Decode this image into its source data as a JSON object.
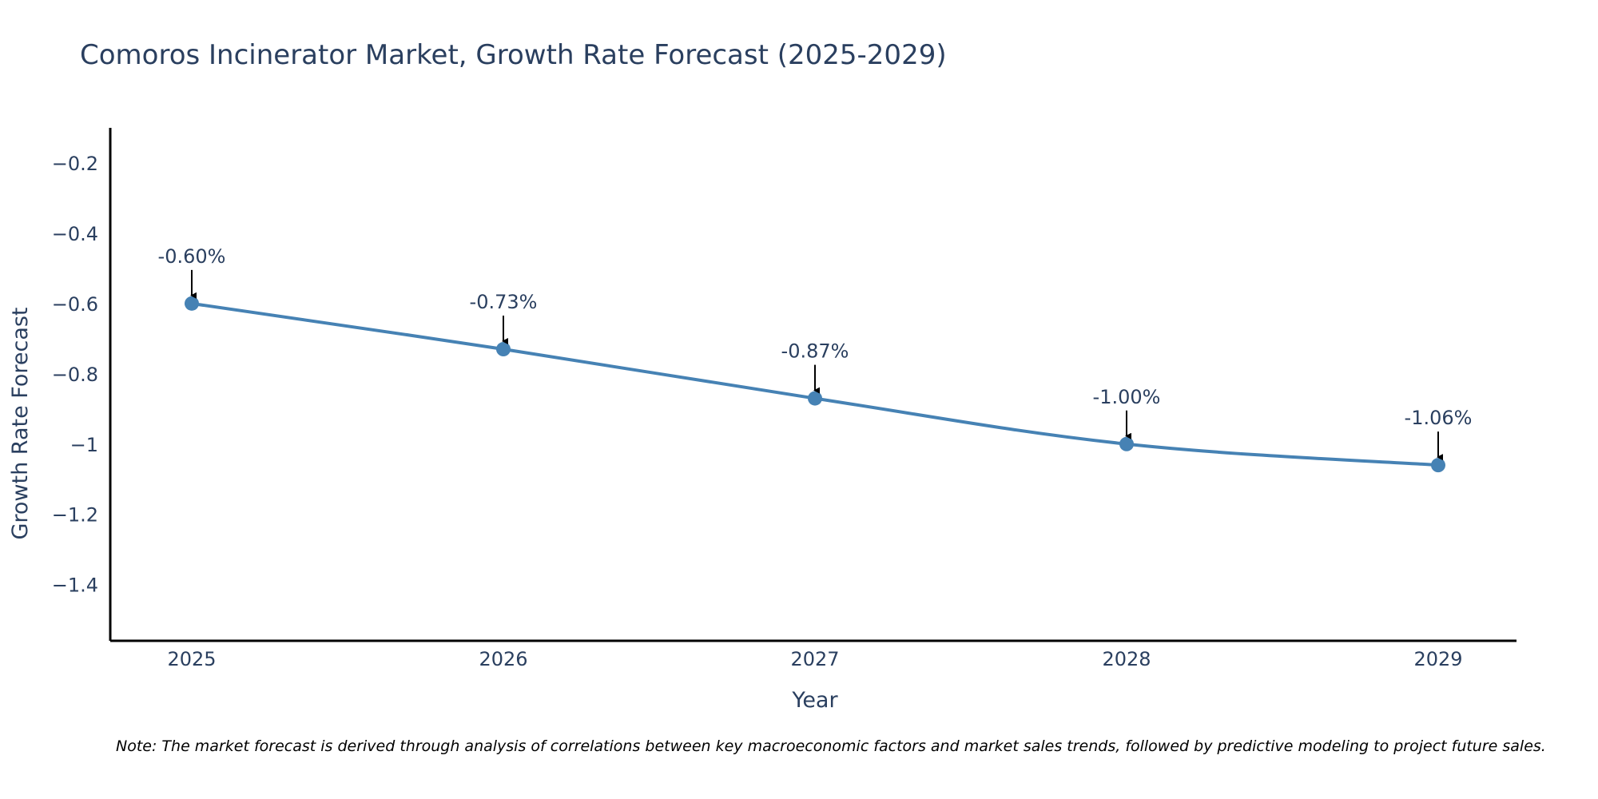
{
  "chart_data": {
    "type": "line",
    "title": "Comoros Incinerator Market, Growth Rate Forecast (2025-2029)",
    "xlabel": "Year",
    "ylabel": "Growth Rate Forecast",
    "categories": [
      "2025",
      "2026",
      "2027",
      "2028",
      "2029"
    ],
    "series": [
      {
        "name": "Growth Rate Forecast",
        "values": [
          -0.6,
          -0.73,
          -0.87,
          -1.0,
          -1.06
        ],
        "labels": [
          "-0.60%",
          "-0.73%",
          "-0.87%",
          "-1.00%",
          "-1.06%"
        ]
      }
    ],
    "ylim": [
      -1.56,
      -0.1
    ],
    "yticks": [
      -0.2,
      -0.4,
      -0.6,
      -0.8,
      -1,
      -1.2,
      -1.4
    ],
    "ytick_labels": [
      "−0.2",
      "−0.4",
      "−0.6",
      "−0.8",
      "−1",
      "−1.2",
      "−1.4"
    ],
    "grid": false,
    "line_color": "#4682B4",
    "note": "Note: The market forecast is derived through analysis of correlations between key macroeconomic factors and market sales trends, followed by predictive modeling to project future sales."
  }
}
